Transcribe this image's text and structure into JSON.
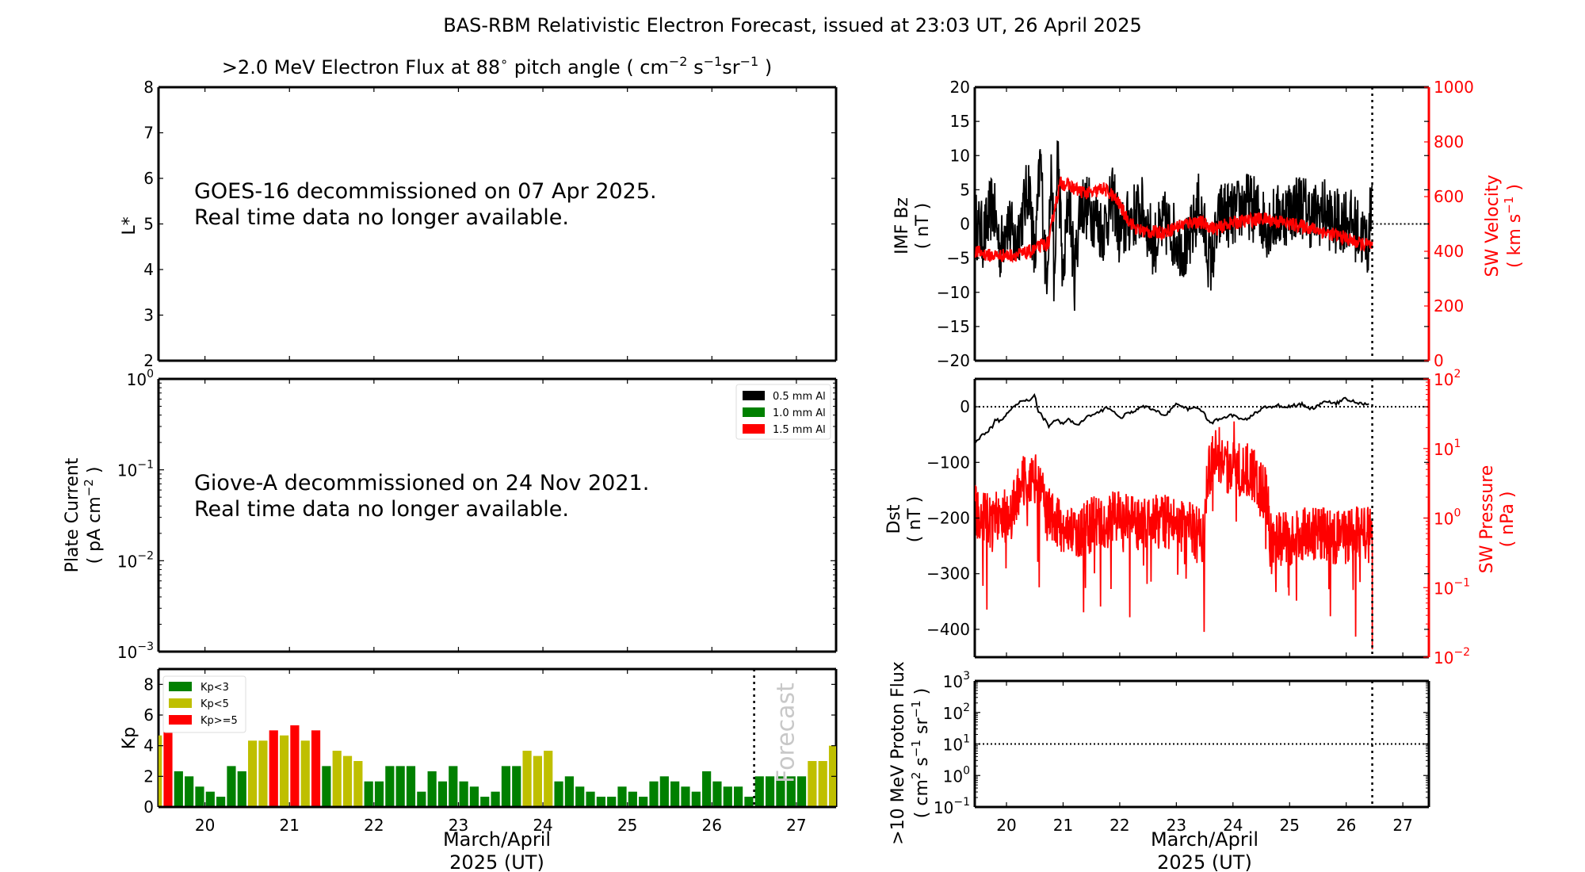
{
  "title": "BAS-RBM Relativistic Electron Forecast, issued at 23:03 UT, 26 April 2025",
  "colors": {
    "green": "#008000",
    "yellow": "#bfbf00",
    "red": "#ff0000",
    "black": "#000000",
    "forecast_text": "#c8c8c8"
  },
  "chart_data": [
    {
      "id": "electron-flux",
      "type": "heatmap",
      "title": ">2.0 MeV Electron Flux at 88° pitch angle ( cm⁻² s⁻¹ sr⁻¹ )",
      "title_parts": {
        "main": ">2.0 MeV Electron Flux at 88",
        "deg": "∘",
        "rest1": " pitch angle ( cm",
        "sup1": "−2",
        "rest2": " s",
        "sup2": "−1",
        "rest3": "sr",
        "sup3": "−1",
        "rest4": " )"
      },
      "ylabel": "L*",
      "ylim": [
        2,
        8
      ],
      "yticks": [
        2,
        3,
        4,
        5,
        6,
        7,
        8
      ],
      "xlim": [
        19.45,
        27.47
      ],
      "message": [
        "GOES-16 decommissioned on 07 Apr 2025.",
        "Real time data no longer available."
      ]
    },
    {
      "id": "plate-current",
      "type": "line",
      "ylabel": [
        "Plate Current",
        "( pA cm⁻² )"
      ],
      "ylabel_parts": {
        "line1": "Plate Current",
        "line2a": "( pA cm",
        "line2sup": "−2",
        "line2b": " )"
      },
      "yscale": "log",
      "ylim": [
        0.001,
        1
      ],
      "yticks": [
        {
          "base": "10",
          "exp": "0"
        },
        {
          "base": "10",
          "exp": "−1"
        },
        {
          "base": "10",
          "exp": "−2"
        },
        {
          "base": "10",
          "exp": "−3"
        }
      ],
      "xlim": [
        19.45,
        27.47
      ],
      "legend": [
        {
          "label": "0.5 mm Al",
          "color": "#000000"
        },
        {
          "label": "1.0 mm Al",
          "color": "#008000"
        },
        {
          "label": "1.5 mm Al",
          "color": "#ff0000"
        }
      ],
      "legend_position": "top-right",
      "message": [
        "Giove-A decommissioned on 24 Nov 2021.",
        "Real time data no longer available."
      ]
    },
    {
      "id": "kp",
      "type": "bar",
      "ylabel": "Kp",
      "ylim": [
        0,
        9
      ],
      "yticks": [
        0,
        2,
        4,
        6,
        8
      ],
      "xlim": [
        19.45,
        27.47
      ],
      "xticks": [
        "20",
        "21",
        "22",
        "23",
        "24",
        "25",
        "26",
        "27"
      ],
      "xlabel": [
        "March/April",
        "2025 (UT)"
      ],
      "forecast_start": 26.5,
      "forecast_label": "Forecast",
      "legend": [
        {
          "label": "Kp<3",
          "color": "#008000"
        },
        {
          "label": "Kp<5",
          "color": "#bfbf00"
        },
        {
          "label": "Kp>=5",
          "color": "#ff0000"
        }
      ],
      "legend_position": "top-left",
      "bin_hours": 3,
      "start": 19.375,
      "values": [
        4.67,
        5.0,
        2.33,
        2.0,
        1.33,
        1.0,
        0.67,
        2.67,
        2.33,
        4.33,
        4.33,
        5.0,
        4.67,
        5.33,
        4.33,
        5.0,
        2.67,
        3.67,
        3.33,
        3.0,
        1.67,
        1.67,
        2.67,
        2.67,
        2.67,
        1.0,
        2.33,
        1.67,
        2.67,
        1.67,
        1.33,
        0.67,
        1.0,
        2.67,
        2.67,
        3.67,
        3.33,
        3.67,
        1.67,
        2.0,
        1.33,
        1.0,
        0.67,
        0.67,
        1.33,
        1.0,
        0.67,
        1.67,
        2.0,
        1.67,
        1.33,
        1.0,
        2.33,
        1.67,
        1.33,
        1.33,
        0.67,
        2.0,
        2.0,
        2.0,
        2.0,
        2.0,
        3.0,
        3.0,
        4.0
      ]
    },
    {
      "id": "imf-sw-velocity",
      "type": "line",
      "ylabel": [
        "IMF Bz",
        "( nT )"
      ],
      "ylim": [
        -20,
        20
      ],
      "yticks": [
        -20,
        -15,
        -10,
        -5,
        0,
        5,
        10,
        15,
        20
      ],
      "y2label": [
        "SW Velocity",
        "( km s⁻¹ )"
      ],
      "y2label_parts": {
        "line1": "SW Velocity",
        "line2a": "( km s",
        "line2sup": "−1",
        "line2b": " )"
      },
      "y2lim": [
        0,
        1000
      ],
      "y2ticks": [
        0,
        200,
        400,
        600,
        800,
        1000
      ],
      "xlim": [
        19.44,
        27.46
      ],
      "now": 26.46,
      "series": [
        {
          "name": "IMF Bz",
          "axis": "left",
          "color": "#000000",
          "x": [
            19.45,
            19.6,
            19.75,
            19.9,
            20.0,
            20.15,
            20.3,
            20.4,
            20.5,
            20.6,
            20.7,
            20.8,
            20.85,
            20.9,
            21.0,
            21.1,
            21.2,
            21.3,
            21.5,
            21.7,
            21.9,
            22.0,
            22.2,
            22.4,
            22.6,
            22.8,
            23.0,
            23.2,
            23.4,
            23.6,
            23.8,
            24.0,
            24.2,
            24.4,
            24.6,
            24.8,
            25.0,
            25.2,
            25.4,
            25.6,
            25.8,
            26.0,
            26.2,
            26.4,
            26.46
          ],
          "y": [
            0,
            -2,
            3,
            -4,
            1,
            -3,
            2,
            6,
            -6,
            10,
            -8,
            8,
            -12,
            12,
            -9,
            5,
            -8,
            3,
            2,
            -1,
            4,
            -2,
            1,
            2,
            -3,
            0,
            -2,
            -4,
            3,
            -6,
            2,
            1,
            3,
            2,
            0,
            1,
            2,
            3,
            1,
            2,
            0,
            1,
            -1,
            -3,
            7
          ],
          "noise": 5
        },
        {
          "name": "SW Velocity",
          "axis": "right",
          "color": "#ff0000",
          "x": [
            19.45,
            19.7,
            20.0,
            20.3,
            20.5,
            20.6,
            20.75,
            20.85,
            20.95,
            21.1,
            21.3,
            21.5,
            21.7,
            21.85,
            22.0,
            22.1,
            22.3,
            22.5,
            22.8,
            23.0,
            23.3,
            23.5,
            23.7,
            23.9,
            24.2,
            24.5,
            24.8,
            25.0,
            25.3,
            25.6,
            25.9,
            26.2,
            26.46
          ],
          "y": [
            400,
            385,
            385,
            390,
            405,
            420,
            430,
            560,
            650,
            640,
            620,
            610,
            630,
            610,
            570,
            530,
            480,
            470,
            470,
            490,
            510,
            500,
            480,
            500,
            510,
            520,
            510,
            500,
            490,
            470,
            455,
            430,
            420
          ],
          "noise": 25
        }
      ]
    },
    {
      "id": "dst-sw-pressure",
      "type": "line",
      "ylabel": [
        "Dst",
        "( nT )"
      ],
      "ylim": [
        -450,
        50
      ],
      "yticks": [
        -400,
        -300,
        -200,
        -100,
        0
      ],
      "y2label": [
        "SW Pressure",
        "( nPa )"
      ],
      "y2scale": "log",
      "y2lim": [
        0.01,
        100
      ],
      "y2ticks": [
        {
          "base": "10",
          "exp": "−2"
        },
        {
          "base": "10",
          "exp": "−1"
        },
        {
          "base": "10",
          "exp": "0"
        },
        {
          "base": "10",
          "exp": "1"
        },
        {
          "base": "10",
          "exp": "2"
        }
      ],
      "xlim": [
        19.44,
        27.46
      ],
      "now": 26.46,
      "series": [
        {
          "name": "Dst",
          "axis": "left",
          "color": "#000000",
          "x": [
            19.45,
            19.6,
            19.75,
            19.8,
            19.9,
            20.0,
            20.15,
            20.3,
            20.4,
            20.5,
            20.55,
            20.65,
            20.75,
            20.85,
            21.0,
            21.1,
            21.25,
            21.4,
            21.6,
            21.8,
            22.0,
            22.2,
            22.4,
            22.6,
            22.8,
            23.0,
            23.2,
            23.4,
            23.6,
            23.8,
            24.0,
            24.2,
            24.4,
            24.6,
            24.8,
            25.0,
            25.2,
            25.4,
            25.6,
            25.8,
            26.0,
            26.2,
            26.4
          ],
          "y": [
            -62,
            -50,
            -35,
            -20,
            -27,
            -15,
            2,
            12,
            12,
            22,
            -5,
            -20,
            -35,
            -22,
            -30,
            -22,
            -35,
            -20,
            -12,
            0,
            -20,
            -10,
            0,
            -5,
            -15,
            5,
            -5,
            0,
            -30,
            -20,
            -15,
            -25,
            -10,
            0,
            2,
            0,
            5,
            -5,
            10,
            5,
            15,
            7,
            3
          ]
        },
        {
          "name": "SW Pressure",
          "axis": "right",
          "color": "#ff0000",
          "x": [
            19.45,
            19.7,
            19.9,
            20.1,
            20.3,
            20.5,
            20.7,
            20.9,
            21.1,
            21.3,
            21.5,
            21.7,
            22.0,
            22.3,
            22.6,
            22.9,
            23.2,
            23.5,
            23.65,
            23.8,
            24.0,
            24.2,
            24.4,
            24.6,
            24.65,
            24.8,
            25.0,
            25.3,
            25.6,
            25.9,
            26.2,
            26.4
          ],
          "y": [
            1.2,
            0.9,
            1.0,
            1.1,
            3.5,
            4.0,
            1.2,
            0.8,
            0.7,
            0.6,
            0.8,
            0.9,
            1.0,
            0.8,
            0.9,
            0.9,
            0.7,
            0.5,
            8,
            6,
            5,
            5,
            4,
            2,
            0.5,
            0.5,
            0.5,
            0.6,
            0.6,
            0.5,
            0.6,
            0.6
          ],
          "noise_log": 0.4
        }
      ]
    },
    {
      "id": "proton-flux",
      "type": "line",
      "ylabel": [
        ">10 MeV Proton Flux",
        "( cm² s⁻¹ sr⁻¹ )"
      ],
      "ylabel_parts": {
        "line1": ">10 MeV Proton Flux",
        "l2a": "( cm",
        "l2s1": "2",
        "l2b": " s",
        "l2s2": "−1",
        "l2c": " sr",
        "l2s3": "−1",
        "l2d": " )"
      },
      "yscale": "log",
      "ylim": [
        0.1,
        1000
      ],
      "yticks": [
        {
          "base": "10",
          "exp": "−1"
        },
        {
          "base": "10",
          "exp": "0"
        },
        {
          "base": "10",
          "exp": "1"
        },
        {
          "base": "10",
          "exp": "2"
        },
        {
          "base": "10",
          "exp": "3"
        }
      ],
      "threshold": 10,
      "xlim": [
        19.44,
        27.46
      ],
      "xticks": [
        "20",
        "21",
        "22",
        "23",
        "24",
        "25",
        "26",
        "27"
      ],
      "xlabel": [
        "March/April",
        "2025 (UT)"
      ],
      "now": 26.46
    }
  ]
}
